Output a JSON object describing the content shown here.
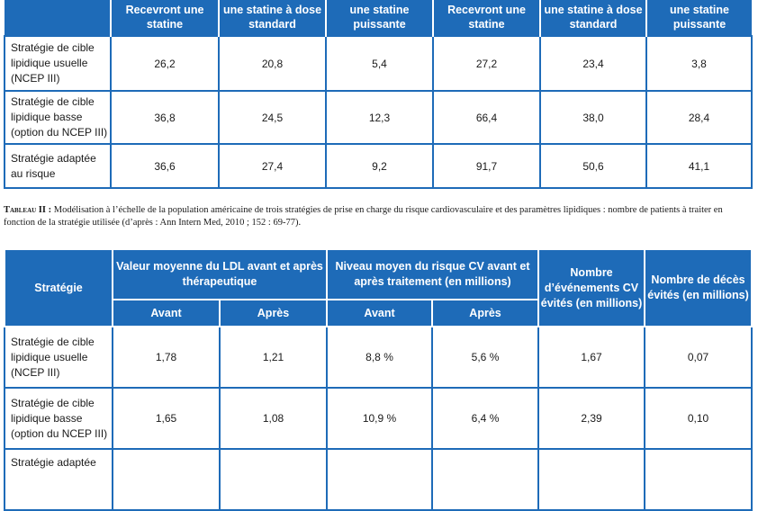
{
  "table1": {
    "headers": [
      "",
      "Recevront une statine",
      "une statine à dose standard",
      "une statine puissante",
      "Recevront une statine",
      "une statine à dose standard",
      "une statine puissante"
    ],
    "rows": [
      {
        "label": "Stratégie de cible lipidique usuelle (NCEP III)",
        "values": [
          "26,2",
          "20,8",
          "5,4",
          "27,2",
          "23,4",
          "3,8"
        ]
      },
      {
        "label": "Stratégie de cible lipidique basse (option du NCEP III)",
        "values": [
          "36,8",
          "24,5",
          "12,3",
          "66,4",
          "38,0",
          "28,4"
        ]
      },
      {
        "label": "Stratégie adaptée au risque",
        "values": [
          "36,6",
          "27,4",
          "9,2",
          "91,7",
          "50,6",
          "41,1"
        ]
      }
    ]
  },
  "caption": {
    "title": "Tableau II :",
    "text": " Modélisation à l’échelle de la population américaine de trois stratégies de prise en charge du risque cardiovasculaire et des paramètres lipidiques : nombre de patients à traiter en fonction de la stratégie utilisée (d’après : Ann Intern Med, 2010 ; 152 : 69-77)."
  },
  "table2": {
    "header_strategie": "Stratégie",
    "header_ldl": "Valeur moyenne du LDL avant et après thérapeutique",
    "header_cv": "Niveau moyen du risque CV avant et après traitement (en millions)",
    "header_events": "Nombre d’événements CV évités (en millions)",
    "header_deaths": "Nombre de décès évités (en millions)",
    "sub_avant": "Avant",
    "sub_apres": "Après",
    "rows": [
      {
        "label": "Stratégie de cible lipidique usuelle (NCEP III)",
        "values": [
          "1,78",
          "1,21",
          "8,8 %",
          "5,6 %",
          "1,67",
          "0,07"
        ]
      },
      {
        "label": "Stratégie de cible lipidique basse (option du NCEP III)",
        "values": [
          "1,65",
          "1,08",
          "10,9 %",
          "6,4 %",
          "2,39",
          "0,10"
        ]
      },
      {
        "label": "Stratégie adaptée",
        "values": [
          "",
          "",
          "",
          "",
          "",
          ""
        ]
      }
    ]
  }
}
